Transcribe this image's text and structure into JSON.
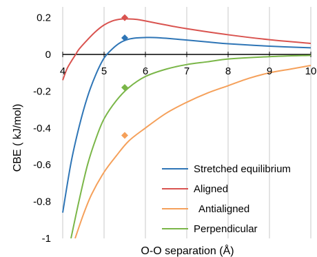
{
  "chart_data": {
    "type": "line",
    "title": "",
    "xlabel": "O-O separation (Å)",
    "ylabel": "CBE ( kJ/mol)",
    "xlim": [
      4,
      10
    ],
    "ylim": [
      -1,
      0.25
    ],
    "x_ticks": [
      "4",
      "5",
      "6",
      "7",
      "8",
      "9",
      "10"
    ],
    "y_ticks": [
      "0.2",
      "0",
      "-0.2",
      "-0.4",
      "-0.6",
      "-0.8",
      "-1"
    ],
    "grid": {
      "vertical": true,
      "horizontal": false
    },
    "legend_position": "bottom-right",
    "series": [
      {
        "name": "Stretched equilibrium",
        "color": "#2e75b6",
        "x": [
          4.0,
          4.2,
          4.4,
          4.6,
          4.8,
          5.0,
          5.2,
          5.4,
          5.6,
          5.8,
          6.0,
          6.2,
          6.5,
          7.0,
          7.5,
          8.0,
          9.0,
          10.0
        ],
        "y": [
          -0.86,
          -0.59,
          -0.39,
          -0.23,
          -0.11,
          -0.02,
          0.03,
          0.065,
          0.083,
          0.09,
          0.092,
          0.092,
          0.088,
          0.078,
          0.068,
          0.058,
          0.045,
          0.036
        ],
        "marker": {
          "x": 5.5,
          "y": 0.09
        }
      },
      {
        "name": "Aligned",
        "color": "#d9534f",
        "x": [
          4.0,
          4.1,
          4.2,
          4.3,
          4.4,
          4.6,
          4.8,
          5.0,
          5.2,
          5.4,
          5.6,
          5.8,
          6.0,
          6.5,
          7.0,
          8.0,
          9.0,
          10.0
        ],
        "y": [
          -0.14,
          -0.08,
          -0.04,
          -0.005,
          0.03,
          0.08,
          0.125,
          0.16,
          0.182,
          0.192,
          0.193,
          0.19,
          0.182,
          0.16,
          0.14,
          0.107,
          0.08,
          0.06
        ],
        "marker": {
          "x": 5.5,
          "y": 0.2
        }
      },
      {
        "name": "Antialigned",
        "color": "#f5a05a",
        "x": [
          4.3,
          4.5,
          4.7,
          5.0,
          5.3,
          5.6,
          6.0,
          6.5,
          7.0,
          7.5,
          8.0,
          8.5,
          9.0,
          9.5,
          10.0
        ],
        "y": [
          -1.0,
          -0.87,
          -0.76,
          -0.64,
          -0.55,
          -0.47,
          -0.4,
          -0.32,
          -0.26,
          -0.21,
          -0.17,
          -0.13,
          -0.1,
          -0.08,
          -0.06
        ],
        "marker": {
          "x": 5.5,
          "y": -0.44
        }
      },
      {
        "name": "Perpendicular",
        "color": "#7ab648",
        "x": [
          4.2,
          4.4,
          4.6,
          4.8,
          5.0,
          5.3,
          5.6,
          6.0,
          6.5,
          7.0,
          7.5,
          8.0,
          9.0,
          10.0
        ],
        "y": [
          -1.0,
          -0.79,
          -0.6,
          -0.46,
          -0.35,
          -0.25,
          -0.18,
          -0.12,
          -0.08,
          -0.055,
          -0.04,
          -0.025,
          -0.012,
          -0.005
        ],
        "marker": {
          "x": 5.5,
          "y": -0.18
        }
      }
    ]
  }
}
